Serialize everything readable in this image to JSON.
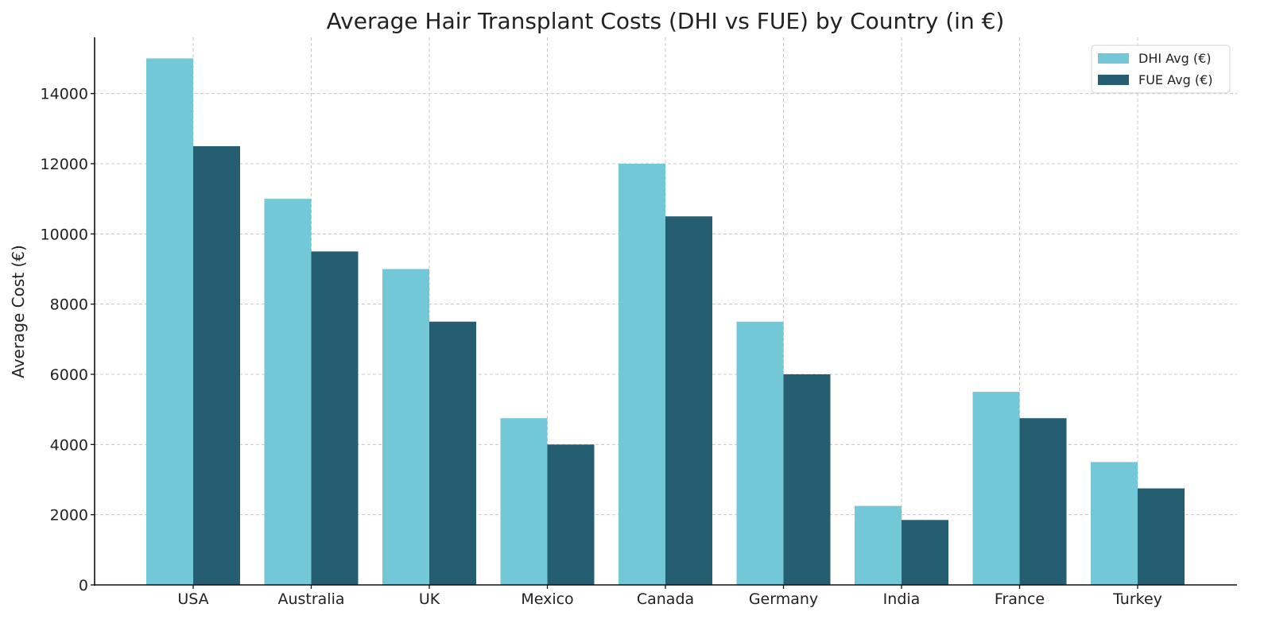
{
  "chart_data": {
    "type": "bar",
    "title": "Average Hair Transplant Costs (DHI vs FUE) by Country (in €)",
    "xlabel": "",
    "ylabel": "Average Cost (€)",
    "ylim": [
      0,
      15600
    ],
    "yticks": [
      0,
      2000,
      4000,
      6000,
      8000,
      10000,
      12000,
      14000
    ],
    "grid": true,
    "legend_position": "top-right",
    "categories": [
      "USA",
      "Australia",
      "UK",
      "Mexico",
      "Canada",
      "Germany",
      "India",
      "France",
      "Turkey"
    ],
    "series": [
      {
        "name": "DHI Avg (€)",
        "color": "#73C8D8",
        "values": [
          15000,
          11000,
          9000,
          4750,
          12000,
          7500,
          2250,
          5500,
          3500
        ]
      },
      {
        "name": "FUE Avg (€)",
        "color": "#255E70",
        "values": [
          12500,
          9500,
          7500,
          4000,
          10500,
          6000,
          1850,
          4750,
          2750
        ]
      }
    ]
  }
}
